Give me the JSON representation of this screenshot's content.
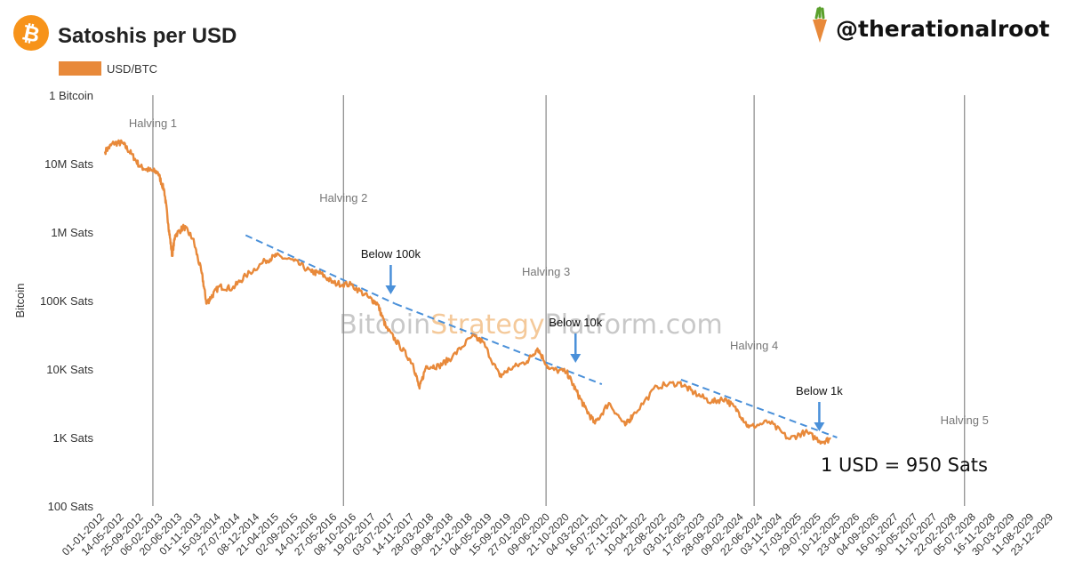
{
  "header": {
    "title": "Satoshis per USD",
    "handle": "@therationalroot",
    "logo_icon": "bitcoin-logo-icon",
    "carrot_icon": "carrot-icon",
    "brand_color": "#F7931A"
  },
  "watermark": {
    "part1": "Bitcoin",
    "part2": "Strategy",
    "part3": "Platform.com"
  },
  "chart_data": {
    "type": "line",
    "title": "Satoshis per USD",
    "ylabel": "Bitcoin",
    "xlabel": "",
    "yscale": "log",
    "ylim": [
      100,
      100000000
    ],
    "xlim": [
      "2012-01-01",
      "2029-12-23"
    ],
    "grid": false,
    "legend": {
      "position": "top-left",
      "entries": [
        "USD/BTC"
      ]
    },
    "series_color": "#E8893A",
    "trend_color": "#4A90D9",
    "y_ticks": [
      {
        "value": 100000000,
        "label": "1 Bitcoin"
      },
      {
        "value": 10000000,
        "label": "10M Sats"
      },
      {
        "value": 1000000,
        "label": "1M Sats"
      },
      {
        "value": 100000,
        "label": "100K Sats"
      },
      {
        "value": 10000,
        "label": "10K Sats"
      },
      {
        "value": 1000,
        "label": "1K Sats"
      },
      {
        "value": 100,
        "label": "100 Sats"
      }
    ],
    "x_tick_labels": [
      "01-01-2012",
      "14-05-2012",
      "25-09-2012",
      "06-02-2013",
      "20-06-2013",
      "01-11-2013",
      "15-03-2014",
      "27-07-2014",
      "08-12-2014",
      "21-04-2015",
      "02-09-2015",
      "14-01-2016",
      "27-05-2016",
      "08-10-2016",
      "19-02-2017",
      "03-07-2017",
      "14-11-2017",
      "28-03-2018",
      "09-08-2018",
      "21-12-2018",
      "04-05-2019",
      "15-09-2019",
      "27-01-2020",
      "09-06-2020",
      "21-10-2020",
      "04-03-2021",
      "16-07-2021",
      "27-11-2021",
      "10-04-2022",
      "22-08-2022",
      "03-01-2023",
      "17-05-2023",
      "28-09-2023",
      "09-02-2024",
      "22-06-2024",
      "03-11-2024",
      "17-03-2025",
      "29-07-2025",
      "10-12-2025",
      "23-04-2026",
      "04-09-2026",
      "16-01-2027",
      "30-05-2027",
      "11-10-2027",
      "22-02-2028",
      "05-07-2028",
      "16-11-2028",
      "30-03-2029",
      "11-08-2029",
      "23-12-2029"
    ],
    "halvings": [
      {
        "name": "Halving 1",
        "date": "2012-11-28"
      },
      {
        "name": "Halving 2",
        "date": "2016-07-09"
      },
      {
        "name": "Halving 3",
        "date": "2020-05-11"
      },
      {
        "name": "Halving 4",
        "date": "2024-04-20"
      },
      {
        "name": "Halving 5",
        "date": "2028-04-15"
      }
    ],
    "series": [
      {
        "name": "USD/BTC",
        "points": [
          [
            "2012-01-01",
            15000000
          ],
          [
            "2012-03-01",
            20000000
          ],
          [
            "2012-05-01",
            20000000
          ],
          [
            "2012-07-01",
            14000000
          ],
          [
            "2012-09-01",
            9000000
          ],
          [
            "2012-11-01",
            8000000
          ],
          [
            "2013-01-01",
            7500000
          ],
          [
            "2013-02-15",
            4000000
          ],
          [
            "2013-03-15",
            1300000
          ],
          [
            "2013-04-10",
            450000
          ],
          [
            "2013-05-01",
            900000
          ],
          [
            "2013-07-01",
            1200000
          ],
          [
            "2013-09-01",
            800000
          ],
          [
            "2013-11-01",
            250000
          ],
          [
            "2013-12-05",
            90000
          ],
          [
            "2014-01-01",
            110000
          ],
          [
            "2014-03-01",
            160000
          ],
          [
            "2014-06-01",
            150000
          ],
          [
            "2014-09-01",
            230000
          ],
          [
            "2015-01-15",
            380000
          ],
          [
            "2015-04-01",
            450000
          ],
          [
            "2015-08-01",
            380000
          ],
          [
            "2015-12-01",
            260000
          ],
          [
            "2016-02-01",
            250000
          ],
          [
            "2016-05-01",
            180000
          ],
          [
            "2016-09-01",
            170000
          ],
          [
            "2017-01-01",
            110000
          ],
          [
            "2017-03-01",
            90000
          ],
          [
            "2017-05-01",
            40000
          ],
          [
            "2017-08-01",
            22000
          ],
          [
            "2017-11-01",
            12000
          ],
          [
            "2017-12-17",
            5200
          ],
          [
            "2018-02-01",
            11000
          ],
          [
            "2018-05-01",
            11000
          ],
          [
            "2018-08-01",
            15000
          ],
          [
            "2018-12-15",
            30000
          ],
          [
            "2019-03-01",
            25000
          ],
          [
            "2019-06-26",
            7800
          ],
          [
            "2019-09-01",
            10000
          ],
          [
            "2020-01-01",
            13000
          ],
          [
            "2020-03-13",
            20000
          ],
          [
            "2020-06-01",
            10000
          ],
          [
            "2020-10-01",
            9000
          ],
          [
            "2020-12-01",
            5000
          ],
          [
            "2021-02-01",
            2800
          ],
          [
            "2021-04-14",
            1600
          ],
          [
            "2021-07-20",
            3200
          ],
          [
            "2021-11-10",
            1500
          ],
          [
            "2022-01-01",
            2100
          ],
          [
            "2022-06-18",
            5600
          ],
          [
            "2022-11-21",
            6300
          ],
          [
            "2023-03-01",
            4500
          ],
          [
            "2023-07-01",
            3300
          ],
          [
            "2023-10-01",
            3700
          ],
          [
            "2024-01-01",
            2400
          ],
          [
            "2024-03-14",
            1400
          ],
          [
            "2024-08-01",
            1700
          ],
          [
            "2024-12-17",
            950
          ],
          [
            "2025-04-08",
            1200
          ],
          [
            "2025-08-01",
            870
          ],
          [
            "2025-10-01",
            950
          ]
        ]
      }
    ],
    "trend_lines": [
      {
        "from": [
          "2014-09-01",
          900000
        ],
        "to": [
          "2017-07-01",
          90000
        ]
      },
      {
        "from": [
          "2017-07-01",
          90000
        ],
        "to": [
          "2021-06-01",
          6000
        ]
      },
      {
        "from": [
          "2022-12-01",
          7000
        ],
        "to": [
          "2025-11-15",
          1000
        ]
      }
    ],
    "annotations": [
      {
        "text": "Below 100k",
        "date": "2017-06-01",
        "value": 100000
      },
      {
        "text": "Below 10k",
        "date": "2020-12-01",
        "value": 10000
      },
      {
        "text": "Below 1k",
        "date": "2025-07-15",
        "value": 1000
      }
    ],
    "result_label": "1 USD = 950 Sats"
  }
}
